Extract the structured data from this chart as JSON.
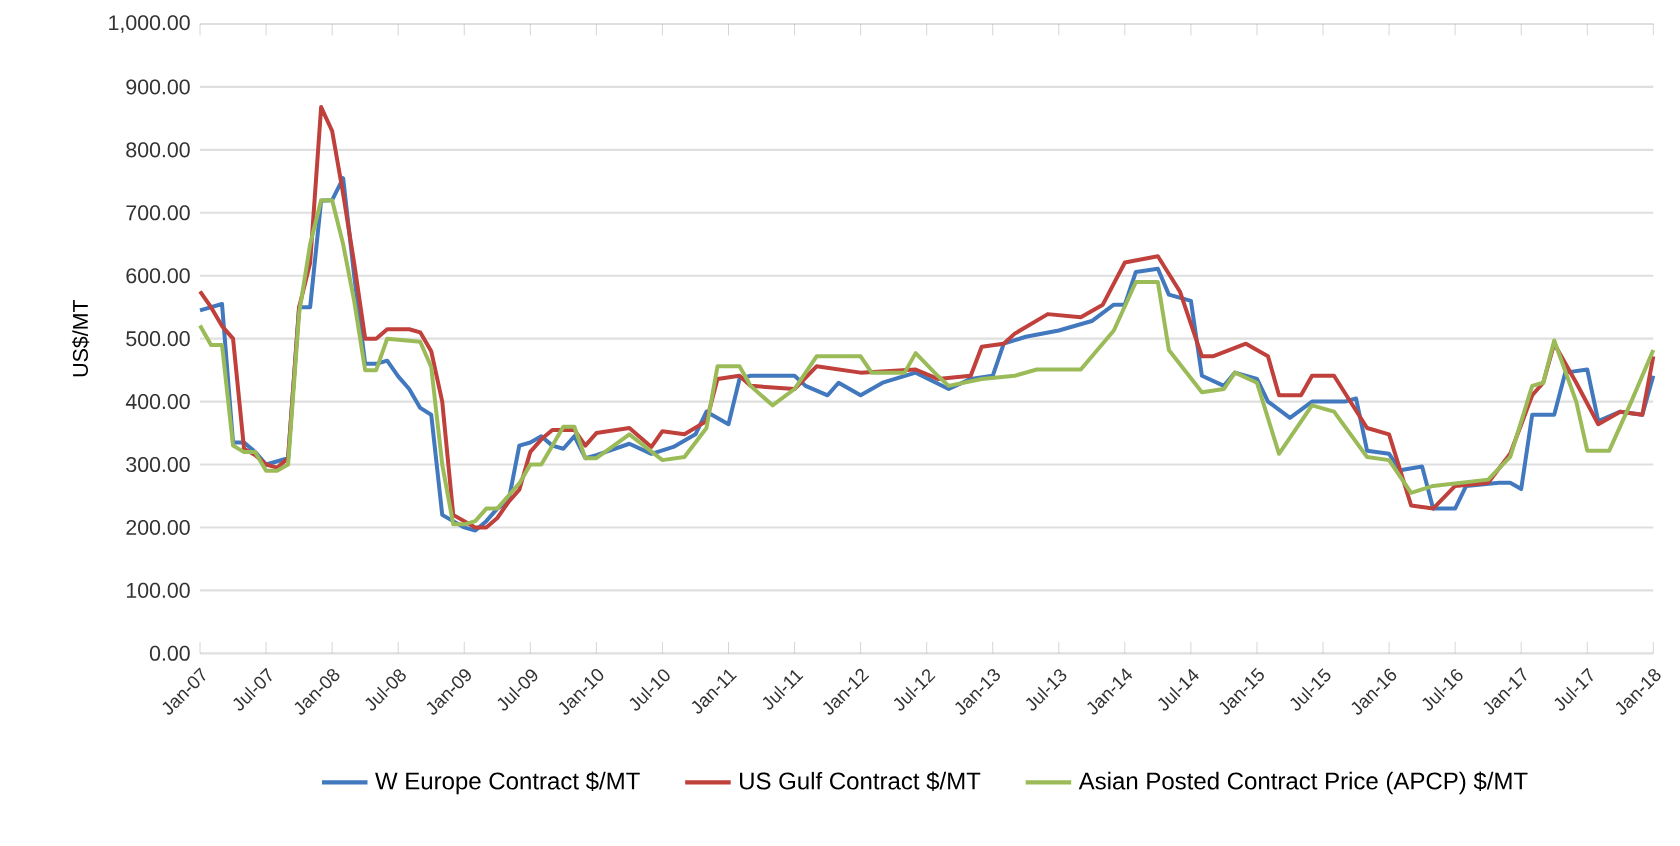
{
  "chart_data": {
    "type": "line",
    "ylabel": "US$/MT",
    "grid": "y",
    "legend": "bottom",
    "marker": "none",
    "line_style": "solid",
    "xlim": [
      "2007-01",
      "2018-01"
    ],
    "ylim": [
      0,
      1000
    ],
    "xticks": [
      {
        "value": "2007-01",
        "label": "Jan-07"
      },
      {
        "value": "2007-07",
        "label": "Jul-07"
      },
      {
        "value": "2008-01",
        "label": "Jan-08"
      },
      {
        "value": "2008-07",
        "label": "Jul-08"
      },
      {
        "value": "2009-01",
        "label": "Jan-09"
      },
      {
        "value": "2009-07",
        "label": "Jul-09"
      },
      {
        "value": "2010-01",
        "label": "Jan-10"
      },
      {
        "value": "2010-07",
        "label": "Jul-10"
      },
      {
        "value": "2011-01",
        "label": "Jan-11"
      },
      {
        "value": "2011-07",
        "label": "Jul-11"
      },
      {
        "value": "2012-01",
        "label": "Jan-12"
      },
      {
        "value": "2012-07",
        "label": "Jul-12"
      },
      {
        "value": "2013-01",
        "label": "Jan-13"
      },
      {
        "value": "2013-07",
        "label": "Jul-13"
      },
      {
        "value": "2014-01",
        "label": "Jan-14"
      },
      {
        "value": "2014-07",
        "label": "Jul-14"
      },
      {
        "value": "2015-01",
        "label": "Jan-15"
      },
      {
        "value": "2015-07",
        "label": "Jul-15"
      },
      {
        "value": "2016-01",
        "label": "Jan-16"
      },
      {
        "value": "2016-07",
        "label": "Jul-16"
      },
      {
        "value": "2017-01",
        "label": "Jan-17"
      },
      {
        "value": "2017-07",
        "label": "Jul-17"
      },
      {
        "value": "2018-01",
        "label": "Jan-18"
      }
    ],
    "yticks": [
      {
        "value": 0,
        "label": "0.00"
      },
      {
        "value": 100,
        "label": "100.00"
      },
      {
        "value": 200,
        "label": "200.00"
      },
      {
        "value": 300,
        "label": "300.00"
      },
      {
        "value": 400,
        "label": "400.00"
      },
      {
        "value": 500,
        "label": "500.00"
      },
      {
        "value": 600,
        "label": "600.00"
      },
      {
        "value": 700,
        "label": "700.00"
      },
      {
        "value": 800,
        "label": "800.00"
      },
      {
        "value": 900,
        "label": "900.00"
      },
      {
        "value": 1000,
        "label": "1,000.00"
      }
    ],
    "series": [
      {
        "name": "W Europe Contract $/MT",
        "color": "#4178be",
        "x": [
          "2007-01",
          "2007-03",
          "2007-04",
          "2007-05",
          "2007-06",
          "2007-07",
          "2007-08",
          "2007-09",
          "2007-10",
          "2007-11",
          "2007-12",
          "2008-01",
          "2008-02",
          "2008-03",
          "2008-04",
          "2008-05",
          "2008-06",
          "2008-07",
          "2008-08",
          "2008-09",
          "2008-10",
          "2008-11",
          "2008-12",
          "2009-01",
          "2009-02",
          "2009-03",
          "2009-04",
          "2009-05",
          "2009-06",
          "2009-07",
          "2009-08",
          "2009-09",
          "2009-10",
          "2009-11",
          "2009-12",
          "2010-01",
          "2010-04",
          "2010-06",
          "2010-08",
          "2010-10",
          "2010-11",
          "2011-01",
          "2011-02",
          "2011-03",
          "2011-07",
          "2011-08",
          "2011-10",
          "2011-11",
          "2012-01",
          "2012-03",
          "2012-06",
          "2012-09",
          "2012-11",
          "2013-01",
          "2013-02",
          "2013-04",
          "2013-07",
          "2013-10",
          "2013-12",
          "2014-01",
          "2014-02",
          "2014-04",
          "2014-05",
          "2014-07",
          "2014-08",
          "2014-10",
          "2014-11",
          "2015-01",
          "2015-02",
          "2015-04",
          "2015-06",
          "2015-09",
          "2015-10",
          "2015-11",
          "2016-01",
          "2016-02",
          "2016-04",
          "2016-05",
          "2016-07",
          "2016-08",
          "2016-11",
          "2016-12",
          "2017-01",
          "2017-02",
          "2017-04",
          "2017-05",
          "2017-07",
          "2017-08",
          "2017-10",
          "2017-12",
          "2018-01"
        ],
        "values": [
          545,
          555,
          335,
          335,
          320,
          300,
          305,
          310,
          550,
          550,
          719,
          720,
          755,
          600,
          460,
          460,
          465,
          440,
          420,
          390,
          379,
          220,
          210,
          200,
          195,
          210,
          230,
          240,
          330,
          335,
          345,
          330,
          325,
          345,
          310,
          315,
          333,
          317,
          328,
          348,
          384,
          364,
          436,
          441,
          441,
          425,
          410,
          430,
          410,
          430,
          446,
          420,
          436,
          441,
          492,
          503,
          513,
          528,
          554,
          554,
          606,
          611,
          570,
          560,
          441,
          425,
          446,
          436,
          400,
          374,
          400,
          400,
          405,
          322,
          317,
          291,
          297,
          230,
          230,
          266,
          271,
          271,
          261,
          379,
          379,
          446,
          451,
          369,
          384,
          379,
          441
        ]
      },
      {
        "name": "US Gulf Contract $/MT",
        "color": "#c0403c",
        "x": [
          "2007-01",
          "2007-02",
          "2007-03",
          "2007-04",
          "2007-05",
          "2007-06",
          "2007-07",
          "2007-08",
          "2007-09",
          "2007-10",
          "2007-11",
          "2007-12",
          "2008-01",
          "2008-02",
          "2008-03",
          "2008-04",
          "2008-05",
          "2008-06",
          "2008-07",
          "2008-08",
          "2008-09",
          "2008-10",
          "2008-11",
          "2008-12",
          "2009-01",
          "2009-02",
          "2009-03",
          "2009-04",
          "2009-05",
          "2009-06",
          "2009-07",
          "2009-08",
          "2009-09",
          "2009-11",
          "2009-12",
          "2010-01",
          "2010-04",
          "2010-06",
          "2010-07",
          "2010-09",
          "2010-11",
          "2010-12",
          "2011-02",
          "2011-03",
          "2011-07",
          "2011-09",
          "2012-01",
          "2012-06",
          "2012-08",
          "2012-11",
          "2012-12",
          "2013-02",
          "2013-03",
          "2013-06",
          "2013-09",
          "2013-11",
          "2014-01",
          "2014-04",
          "2014-06",
          "2014-08",
          "2014-09",
          "2014-12",
          "2015-02",
          "2015-03",
          "2015-05",
          "2015-06",
          "2015-08",
          "2015-11",
          "2016-01",
          "2016-03",
          "2016-05",
          "2016-07",
          "2016-10",
          "2016-12",
          "2017-02",
          "2017-03",
          "2017-04",
          "2017-06",
          "2017-08",
          "2017-10",
          "2017-12",
          "2018-01"
        ],
        "values": [
          575,
          550,
          520,
          500,
          325,
          315,
          300,
          295,
          310,
          550,
          620,
          868,
          830,
          730,
          620,
          500,
          500,
          515,
          515,
          515,
          510,
          480,
          400,
          220,
          210,
          200,
          200,
          215,
          240,
          260,
          320,
          340,
          355,
          355,
          330,
          350,
          358,
          328,
          353,
          348,
          369,
          436,
          441,
          425,
          420,
          456,
          446,
          451,
          436,
          441,
          487,
          492,
          508,
          539,
          534,
          554,
          621,
          631,
          575,
          472,
          472,
          492,
          472,
          410,
          410,
          441,
          441,
          358,
          348,
          235,
          230,
          266,
          271,
          317,
          410,
          430,
          492,
          430,
          364,
          384,
          379,
          472
        ]
      },
      {
        "name": "Asian Posted Contract Price (APCP) $/MT",
        "color": "#9bbb59",
        "x": [
          "2007-01",
          "2007-02",
          "2007-03",
          "2007-04",
          "2007-05",
          "2007-06",
          "2007-07",
          "2007-08",
          "2007-09",
          "2007-10",
          "2007-11",
          "2007-12",
          "2008-01",
          "2008-02",
          "2008-03",
          "2008-04",
          "2008-05",
          "2008-06",
          "2008-09",
          "2008-10",
          "2008-11",
          "2008-12",
          "2009-01",
          "2009-02",
          "2009-03",
          "2009-04",
          "2009-05",
          "2009-06",
          "2009-07",
          "2009-08",
          "2009-09",
          "2009-10",
          "2009-11",
          "2009-12",
          "2010-01",
          "2010-04",
          "2010-07",
          "2010-09",
          "2010-11",
          "2010-12",
          "2011-02",
          "2011-03",
          "2011-05",
          "2011-07",
          "2011-09",
          "2012-01",
          "2012-02",
          "2012-05",
          "2012-06",
          "2012-08",
          "2012-09",
          "2012-12",
          "2013-03",
          "2013-05",
          "2013-09",
          "2013-12",
          "2014-02",
          "2014-04",
          "2014-05",
          "2014-08",
          "2014-10",
          "2014-11",
          "2015-01",
          "2015-03",
          "2015-06",
          "2015-08",
          "2015-11",
          "2016-01",
          "2016-03",
          "2016-05",
          "2016-10",
          "2016-12",
          "2017-02",
          "2017-03",
          "2017-04",
          "2017-06",
          "2017-07",
          "2017-09",
          "2017-11",
          "2018-01"
        ],
        "values": [
          521,
          490,
          490,
          330,
          320,
          320,
          290,
          290,
          300,
          540,
          650,
          720,
          720,
          650,
          560,
          450,
          450,
          500,
          495,
          455,
          300,
          205,
          205,
          210,
          230,
          230,
          250,
          270,
          300,
          300,
          330,
          360,
          360,
          310,
          310,
          348,
          307,
          312,
          358,
          456,
          456,
          425,
          394,
          420,
          472,
          472,
          446,
          446,
          477,
          441,
          425,
          436,
          441,
          451,
          451,
          513,
          590,
          590,
          482,
          415,
          420,
          446,
          430,
          317,
          394,
          384,
          312,
          307,
          255,
          266,
          276,
          312,
          425,
          430,
          497,
          400,
          322,
          322,
          400,
          482
        ]
      }
    ]
  }
}
